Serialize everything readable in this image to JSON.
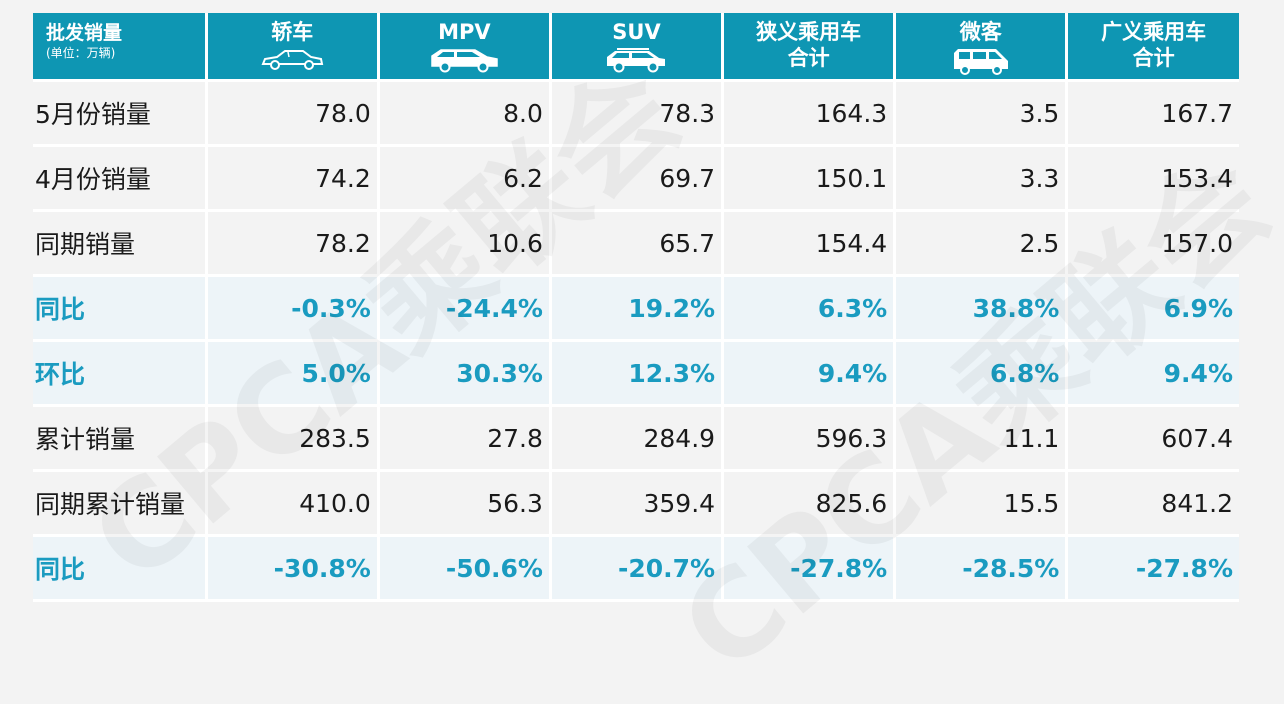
{
  "header": {
    "first_title": "批发销量",
    "first_unit": "(单位：万辆)",
    "columns": [
      {
        "label": "轿车",
        "icon": "sedan-icon"
      },
      {
        "label": "MPV",
        "icon": "mpv-icon"
      },
      {
        "label": "SUV",
        "icon": "suv-icon"
      },
      {
        "label": "狭义乘用车合计",
        "line1": "狭义乘用车",
        "line2": "合计"
      },
      {
        "label": "微客",
        "icon": "minivan-icon"
      },
      {
        "label": "广义乘用车合计",
        "line1": "广义乘用车",
        "line2": "合计"
      }
    ]
  },
  "rows": [
    {
      "label": "5月份销量",
      "type": "value",
      "values": [
        "78.0",
        "8.0",
        "78.3",
        "164.3",
        "3.5",
        "167.7"
      ]
    },
    {
      "label": "4月份销量",
      "type": "value",
      "values": [
        "74.2",
        "6.2",
        "69.7",
        "150.1",
        "3.3",
        "153.4"
      ]
    },
    {
      "label": "同期销量",
      "type": "value",
      "values": [
        "78.2",
        "10.6",
        "65.7",
        "154.4",
        "2.5",
        "157.0"
      ]
    },
    {
      "label": "同比",
      "type": "pct",
      "values": [
        "-0.3%",
        "-24.4%",
        "19.2%",
        "6.3%",
        "38.8%",
        "6.9%"
      ]
    },
    {
      "label": "环比",
      "type": "pct",
      "values": [
        "5.0%",
        "30.3%",
        "12.3%",
        "9.4%",
        "6.8%",
        "9.4%"
      ]
    },
    {
      "label": "累计销量",
      "type": "value",
      "values": [
        "283.5",
        "27.8",
        "284.9",
        "596.3",
        "11.1",
        "607.4"
      ]
    },
    {
      "label": "同期累计销量",
      "type": "value",
      "values": [
        "410.0",
        "56.3",
        "359.4",
        "825.6",
        "15.5",
        "841.2"
      ]
    },
    {
      "label": "同比",
      "type": "pct",
      "values": [
        "-30.8%",
        "-50.6%",
        "-20.7%",
        "-27.8%",
        "-28.5%",
        "-27.8%"
      ]
    }
  ],
  "watermark": "CPCA乘联会",
  "colors": {
    "header_bg": "#0e96b3",
    "pct_text": "#1a9bc0",
    "page_bg": "#f3f3f3"
  }
}
